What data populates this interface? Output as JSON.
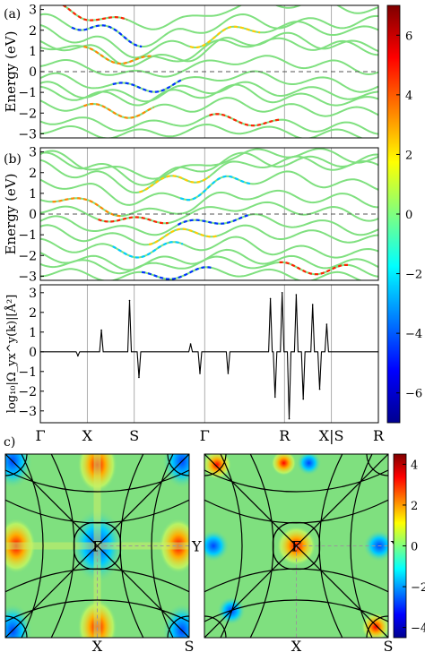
{
  "panel_labels": {
    "a": "(a)",
    "b": "(b)",
    "c": "c)"
  },
  "chart_data": [
    {
      "type": "line",
      "panel": "(a)",
      "ylabel": "Energy (eV)",
      "ylim": [
        -3.2,
        3.2
      ],
      "yticks": [
        3,
        2,
        1,
        0,
        -1,
        -2,
        -3
      ],
      "x_ticks": [
        "Γ",
        "X",
        "S",
        "Γ",
        "R",
        "X|S",
        "R"
      ],
      "x_tick_positions": [
        0,
        1,
        2,
        3.5,
        5.2,
        6.2,
        7.2
      ],
      "fermi_level": 0,
      "grid": "vertical lines at high-symmetry points",
      "line_color_base": "#7fe07f",
      "bands": [
        [
          3.0,
          2.5,
          2.0,
          2.2,
          2.9,
          3.1,
          3.0,
          2.7
        ],
        [
          2.6,
          2.3,
          1.5,
          1.9,
          2.6,
          2.4,
          2.4,
          2.5
        ],
        [
          2.1,
          1.6,
          1.0,
          1.4,
          2.0,
          2.3,
          2.1,
          2.0
        ],
        [
          1.6,
          1.2,
          0.6,
          0.9,
          1.6,
          1.8,
          1.5,
          1.3
        ],
        [
          1.1,
          0.7,
          0.2,
          0.5,
          1.2,
          1.1,
          1.0,
          0.8
        ],
        [
          0.5,
          0.2,
          -0.2,
          0.1,
          0.6,
          0.5,
          0.3,
          0.1
        ],
        [
          0.0,
          -0.3,
          -0.6,
          -0.3,
          0.1,
          -0.1,
          -0.3,
          -0.6
        ],
        [
          -0.6,
          -0.9,
          -1.1,
          -0.8,
          -0.6,
          -0.8,
          -0.9,
          -1.1
        ],
        [
          -1.2,
          -1.4,
          -1.6,
          -1.3,
          -1.1,
          -1.5,
          -1.6,
          -1.7
        ],
        [
          -1.7,
          -2.0,
          -2.2,
          -1.9,
          -1.7,
          -2.0,
          -2.1,
          -2.2
        ],
        [
          -2.3,
          -2.5,
          -2.7,
          -2.4,
          -2.3,
          -2.6,
          -2.7,
          -2.8
        ],
        [
          -2.8,
          -3.0,
          -3.1,
          -2.9,
          -2.8,
          -3.0,
          -3.1,
          -3.1
        ]
      ],
      "colorbar": {
        "ticks": [
          6,
          4,
          2,
          0,
          -2,
          -4,
          -6
        ],
        "range": [
          -7,
          7
        ]
      }
    },
    {
      "type": "line",
      "panel": "(b)",
      "ylabel": "Energy (eV)",
      "ylim": [
        -3.2,
        3.2
      ],
      "yticks": [
        3,
        2,
        1,
        0,
        -1,
        -2,
        -3
      ],
      "fermi_level": 0
    },
    {
      "type": "line",
      "panel": "Berry curvature",
      "ylabel": "log₁₀|Ω_yx^y(k)|[Å²]",
      "ylim": [
        -3.6,
        3.4
      ],
      "yticks": [
        3,
        2,
        1,
        0,
        -1,
        -2,
        -3
      ],
      "x_ticks": [
        "Γ",
        "X",
        "S",
        "Γ",
        "R",
        "X|S",
        "R"
      ],
      "spikes": [
        {
          "x": 0.8,
          "y": -0.2
        },
        {
          "x": 1.3,
          "y": 1.1
        },
        {
          "x": 1.9,
          "y": 2.6
        },
        {
          "x": 2.1,
          "y": -1.3
        },
        {
          "x": 3.2,
          "y": 0.4
        },
        {
          "x": 3.4,
          "y": -1.1
        },
        {
          "x": 4.0,
          "y": -1.1
        },
        {
          "x": 4.9,
          "y": 2.7
        },
        {
          "x": 5.0,
          "y": -2.3
        },
        {
          "x": 5.15,
          "y": 3.0
        },
        {
          "x": 5.3,
          "y": -3.4
        },
        {
          "x": 5.45,
          "y": 2.9
        },
        {
          "x": 5.6,
          "y": -2.4
        },
        {
          "x": 5.8,
          "y": 2.4
        },
        {
          "x": 5.95,
          "y": -1.9
        },
        {
          "x": 6.1,
          "y": 1.4
        }
      ]
    },
    {
      "type": "heatmap",
      "panel": "c) left",
      "corner_labels": {
        "center": "Γ",
        "right": "Y",
        "bottom": "X",
        "corner": "S"
      }
    },
    {
      "type": "heatmap",
      "panel": "c) right",
      "corner_labels": {
        "center": "Γ",
        "right": "Y",
        "bottom": "X",
        "corner": "S"
      },
      "colorbar": {
        "ticks": [
          4,
          2,
          0,
          -2,
          -4
        ],
        "range": [
          -4.5,
          4.5
        ]
      }
    }
  ]
}
